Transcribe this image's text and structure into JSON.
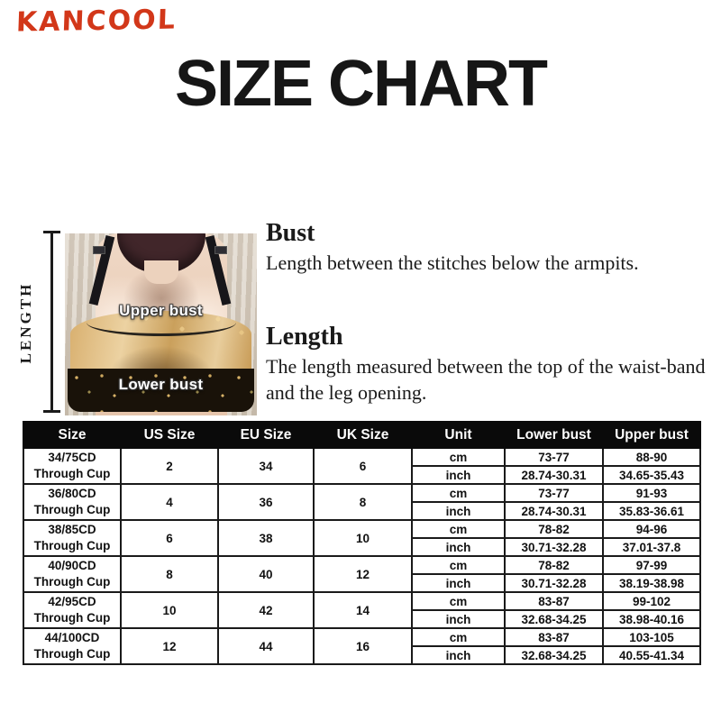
{
  "brand": "KANCOOL",
  "title": "SIZE CHART",
  "colors": {
    "brand_red": "#d23719",
    "title_black": "#161616",
    "table_header_bg": "#0a0a0a",
    "table_header_text": "#ffffff",
    "bra_gold": "#d8af6e",
    "bra_band_black": "#191209"
  },
  "figure": {
    "axis_label": "LENGTH",
    "photo_labels": {
      "upper": "Upper bust",
      "lower": "Lower bust"
    }
  },
  "definitions": [
    {
      "term": "Bust",
      "text": "Length between the stitches below the armpits."
    },
    {
      "term": "Length",
      "text": "The length measured between the top of the waist-band and the leg opening."
    }
  ],
  "table": {
    "headers": [
      "Size",
      "US Size",
      "EU Size",
      "UK Size",
      "Unit",
      "Lower bust",
      "Upper bust"
    ],
    "unit_labels": [
      "cm",
      "inch"
    ],
    "rows": [
      {
        "size": "34/75CD",
        "size_sub": "Through Cup",
        "us": "2",
        "eu": "34",
        "uk": "6",
        "cm": {
          "lower": "73-77",
          "upper": "88-90"
        },
        "inch": {
          "lower": "28.74-30.31",
          "upper": "34.65-35.43"
        }
      },
      {
        "size": "36/80CD",
        "size_sub": "Through Cup",
        "us": "4",
        "eu": "36",
        "uk": "8",
        "cm": {
          "lower": "73-77",
          "upper": "91-93"
        },
        "inch": {
          "lower": "28.74-30.31",
          "upper": "35.83-36.61"
        }
      },
      {
        "size": "38/85CD",
        "size_sub": "Through Cup",
        "us": "6",
        "eu": "38",
        "uk": "10",
        "cm": {
          "lower": "78-82",
          "upper": "94-96"
        },
        "inch": {
          "lower": "30.71-32.28",
          "upper": "37.01-37.8"
        }
      },
      {
        "size": "40/90CD",
        "size_sub": "Through Cup",
        "us": "8",
        "eu": "40",
        "uk": "12",
        "cm": {
          "lower": "78-82",
          "upper": "97-99"
        },
        "inch": {
          "lower": "30.71-32.28",
          "upper": "38.19-38.98"
        }
      },
      {
        "size": "42/95CD",
        "size_sub": "Through Cup",
        "us": "10",
        "eu": "42",
        "uk": "14",
        "cm": {
          "lower": "83-87",
          "upper": "99-102"
        },
        "inch": {
          "lower": "32.68-34.25",
          "upper": "38.98-40.16"
        }
      },
      {
        "size": "44/100CD",
        "size_sub": "Through Cup",
        "us": "12",
        "eu": "44",
        "uk": "16",
        "cm": {
          "lower": "83-87",
          "upper": "103-105"
        },
        "inch": {
          "lower": "32.68-34.25",
          "upper": "40.55-41.34"
        }
      }
    ]
  }
}
